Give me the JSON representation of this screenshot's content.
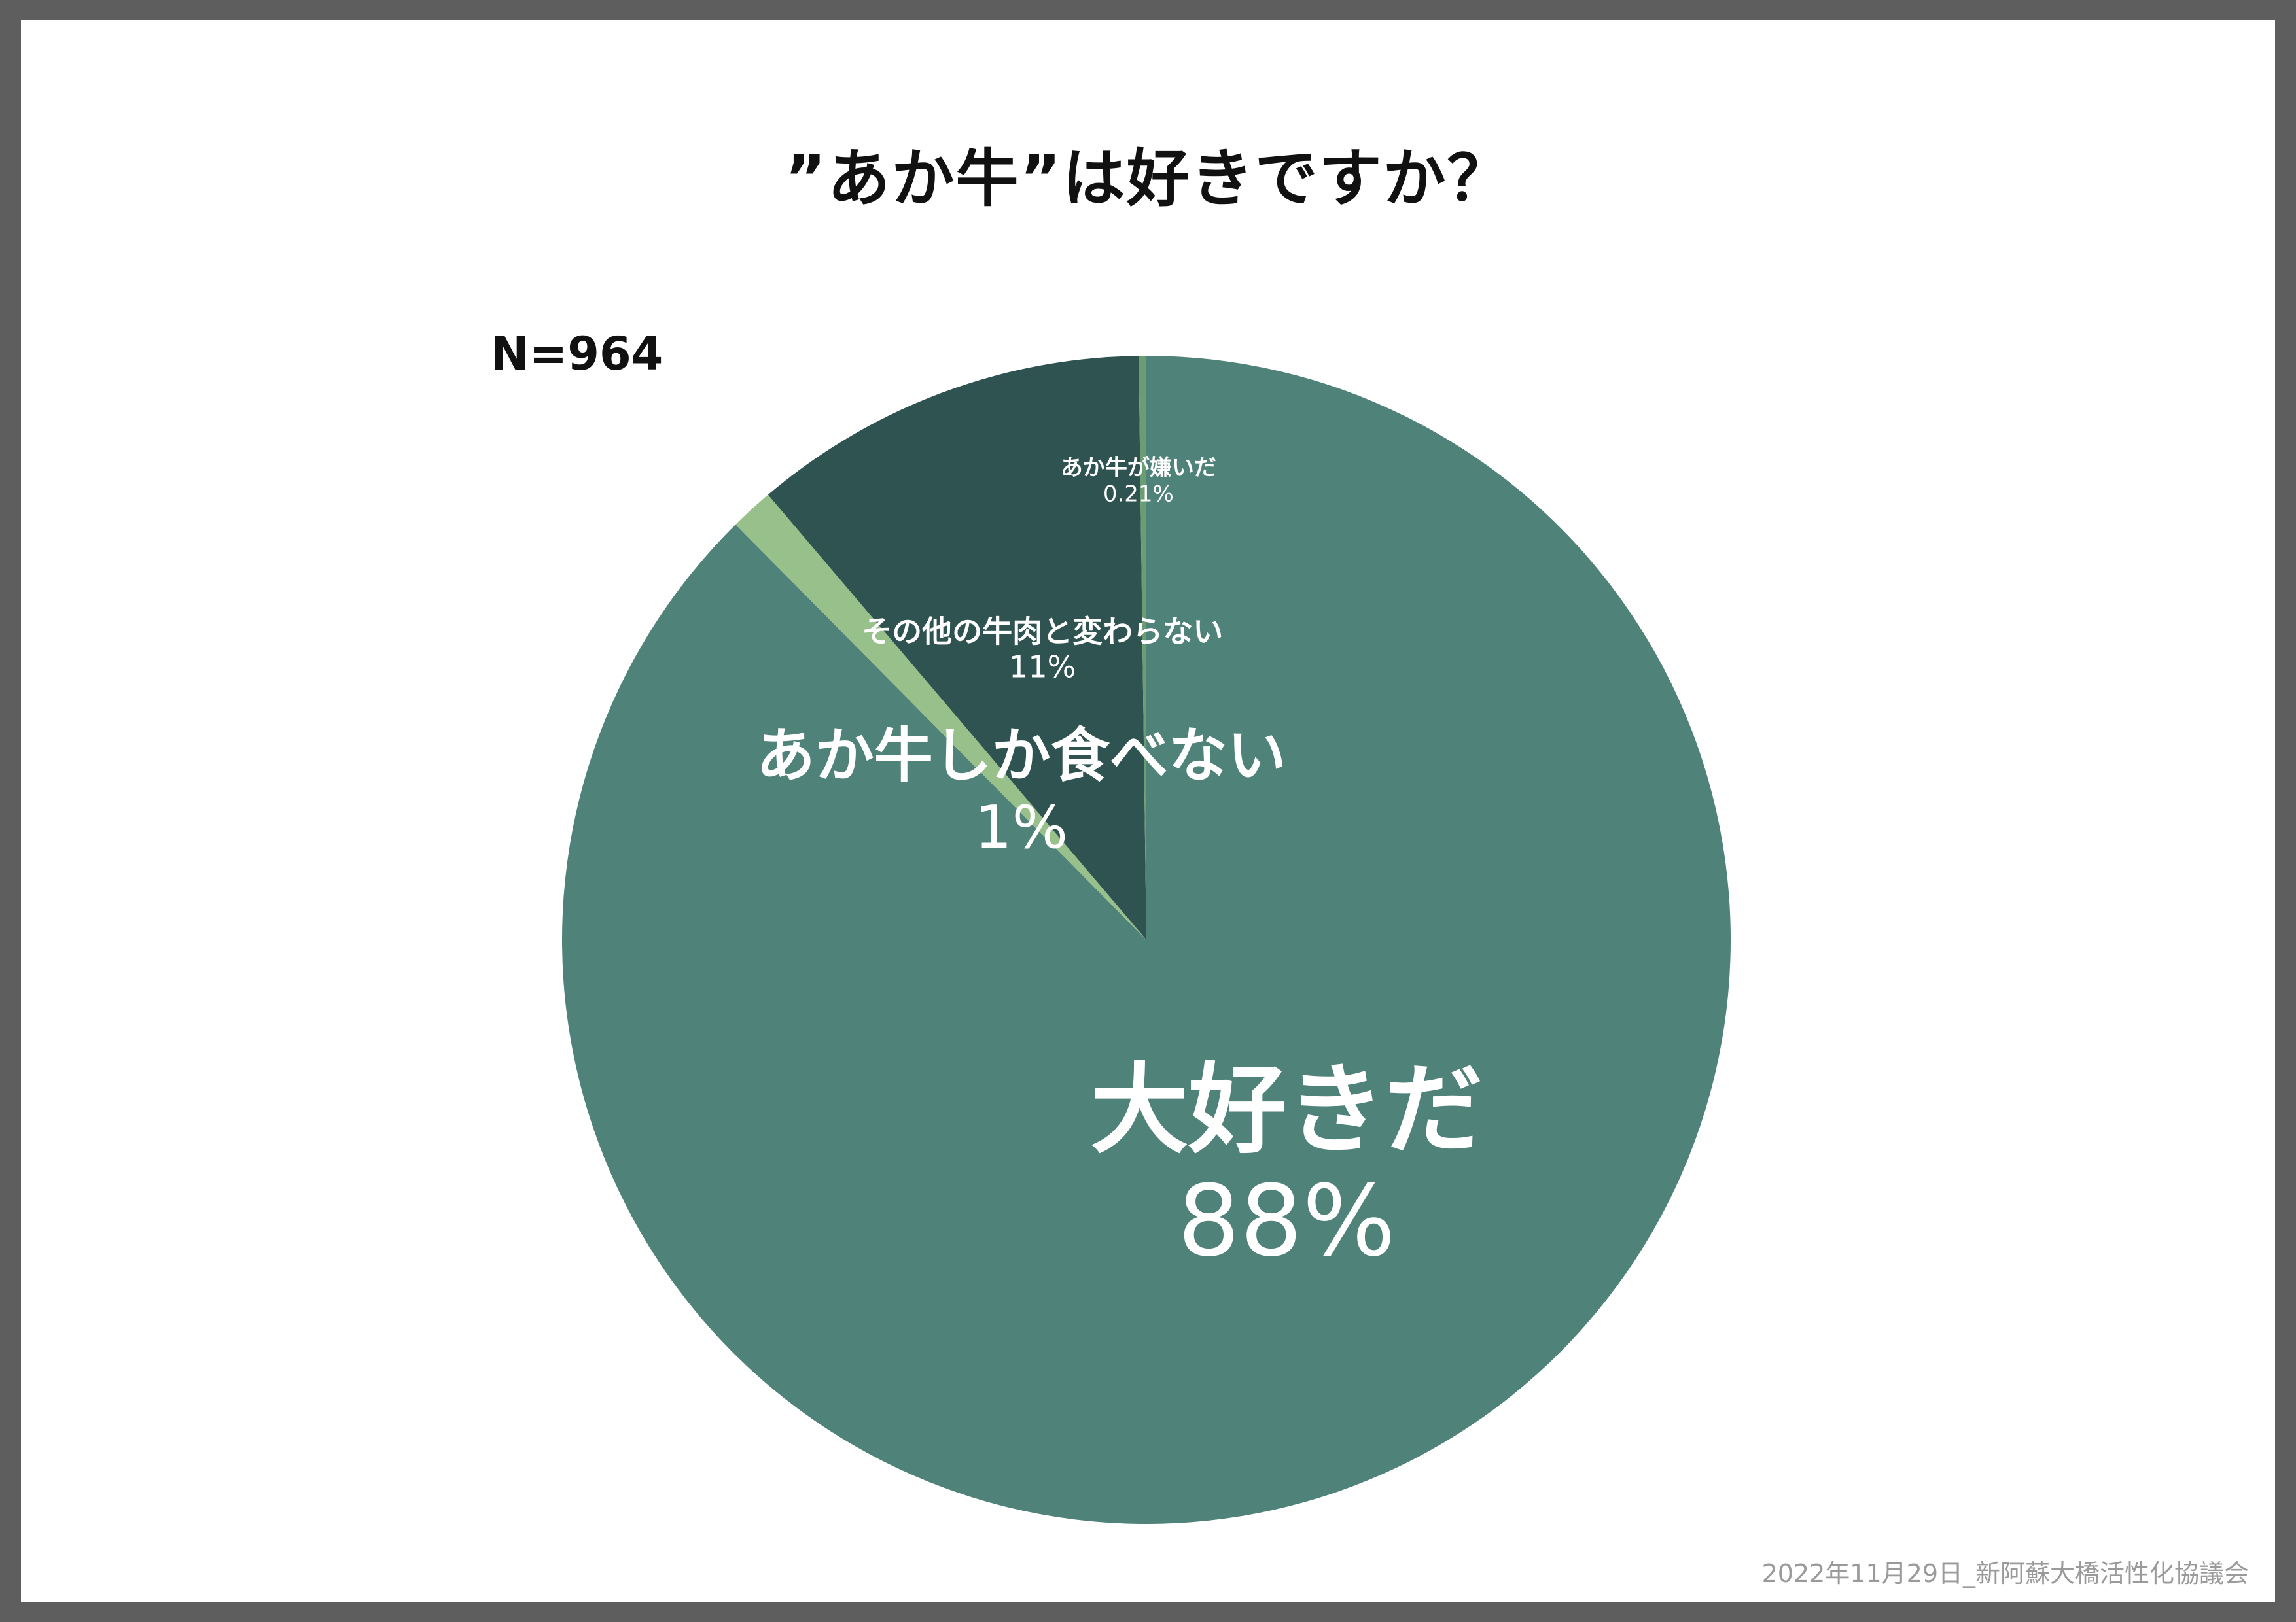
{
  "title": "”あか牛”は好きですか？",
  "n_label": "N=964",
  "footer": "2022年11月29日_新阿蘇大橋活性化協議会",
  "chart_data": {
    "type": "pie",
    "title": "”あか牛”は好きですか？",
    "slices": [
      {
        "label": "大好きだ",
        "pct_label": "88%",
        "value": 87.6,
        "color": "#4f8279"
      },
      {
        "label": "あか牛しか食べない",
        "pct_label": "1%",
        "value": 1.2,
        "color": "#98c08a"
      },
      {
        "label": "その他の牛肉と変わらない",
        "pct_label": "11%",
        "value": 11.0,
        "color": "#2f5351"
      },
      {
        "label": "あか牛が嫌いだ",
        "pct_label": "0.21%",
        "value": 0.21,
        "color": "#6a9e72"
      }
    ]
  }
}
